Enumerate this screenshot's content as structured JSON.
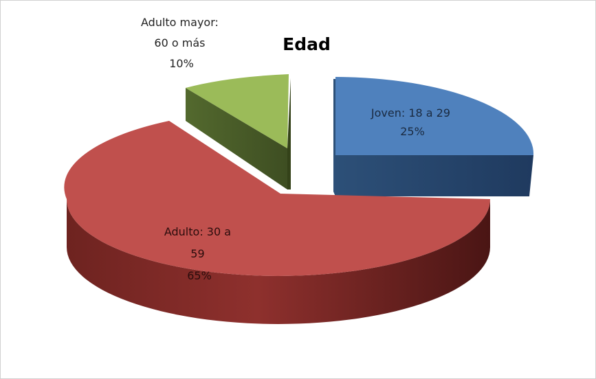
{
  "chart_data": {
    "type": "pie",
    "title": "Edad",
    "slices": [
      {
        "label_lines": [
          "Joven: 18 a 29",
          "25%"
        ],
        "value": 25,
        "top_color": "#4f81bd",
        "side_color": "#1f3a5f",
        "side_color_light": "#2d5078"
      },
      {
        "label_lines": [
          "Adulto: 30 a",
          "59",
          "65%"
        ],
        "value": 65,
        "top_color": "#c0504d",
        "side_color": "#5e1c1a",
        "side_color_light": "#8e302d"
      },
      {
        "label_lines": [
          "Adulto mayor:",
          "60 o más",
          "10%"
        ],
        "value": 10,
        "top_color": "#9bbb59",
        "side_color": "#3e4e22",
        "side_color_light": "#53692e"
      }
    ]
  }
}
